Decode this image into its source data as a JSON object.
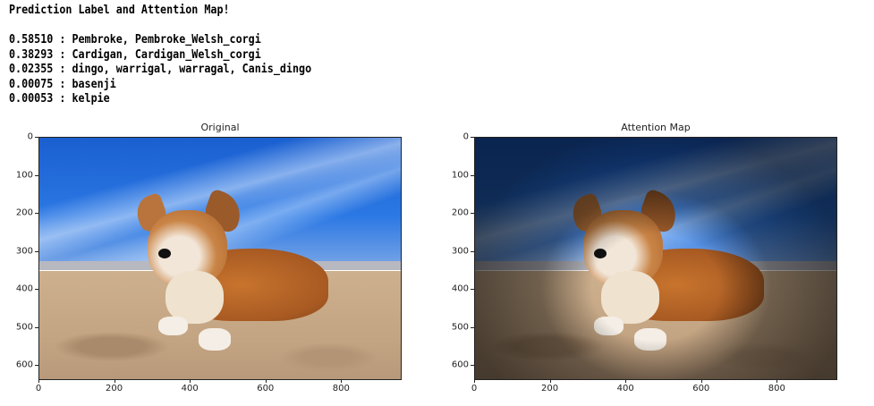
{
  "output": {
    "heading": "Prediction Label and Attention Map!",
    "predictions": [
      {
        "score": "0.58510",
        "label": "Pembroke, Pembroke_Welsh_corgi"
      },
      {
        "score": "0.38293",
        "label": "Cardigan, Cardigan_Welsh_corgi"
      },
      {
        "score": "0.02355",
        "label": "dingo, warrigal, warragal, Canis_dingo"
      },
      {
        "score": "0.00075",
        "label": "basenji"
      },
      {
        "score": "0.00053",
        "label": "kelpie"
      }
    ]
  },
  "chart_data": [
    {
      "type": "image",
      "title": "Original",
      "xlim": [
        0,
        960
      ],
      "ylim": [
        640,
        0
      ],
      "xticks": [
        "0",
        "200",
        "400",
        "600",
        "800"
      ],
      "yticks": [
        "0",
        "100",
        "200",
        "300",
        "400",
        "500",
        "600"
      ]
    },
    {
      "type": "image",
      "title": "Attention Map",
      "xlim": [
        0,
        960
      ],
      "ylim": [
        640,
        0
      ],
      "xticks": [
        "0",
        "200",
        "400",
        "600",
        "800"
      ],
      "yticks": [
        "0",
        "100",
        "200",
        "300",
        "400",
        "500",
        "600"
      ]
    }
  ]
}
